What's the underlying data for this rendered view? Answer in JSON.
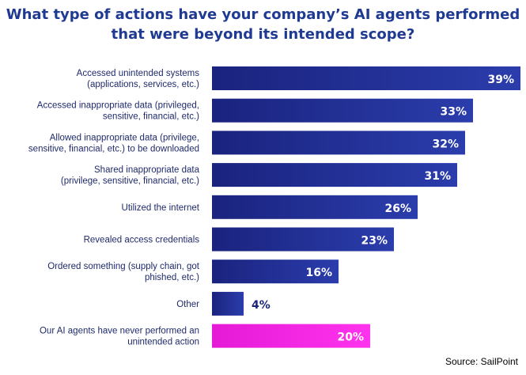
{
  "chart_data": {
    "type": "bar",
    "orientation": "horizontal",
    "title_lines": [
      "What type of actions have your company’s AI agents performed",
      "that were beyond its intended scope?"
    ],
    "categories": [
      [
        "Accessed unintended systems",
        "(applications, services, etc.)"
      ],
      [
        "Accessed inappropriate data (privileged,",
        "sensitive, financial, etc.)"
      ],
      [
        "Allowed inappropriate data (privilege,",
        "sensitive, financial, etc.) to be downloaded"
      ],
      [
        "Shared inappropriate data",
        "(privilege, sensitive, financial, etc.)"
      ],
      [
        "Utilized the internet"
      ],
      [
        "Revealed access credentials"
      ],
      [
        "Ordered something (supply chain, got",
        "phished, etc.)"
      ],
      [
        "Other"
      ],
      [
        "Our AI agents have never performed an",
        "unintended action"
      ]
    ],
    "values": [
      39,
      33,
      32,
      31,
      26,
      23,
      16,
      4,
      20
    ],
    "value_labels": [
      "39%",
      "33%",
      "32%",
      "31%",
      "26%",
      "23%",
      "16%",
      "4%",
      "20%"
    ],
    "colors": {
      "primary": "#1a237e",
      "primary_light": "#2b3dac",
      "highlight": "#e51ad6",
      "highlight_light": "#ff33ee",
      "title": "#1f3a93",
      "label": "#1f2a6b"
    },
    "highlight_index": 8,
    "xlim": [
      0,
      39
    ],
    "grid": false,
    "legend": "none",
    "source": "Source: SailPoint"
  }
}
